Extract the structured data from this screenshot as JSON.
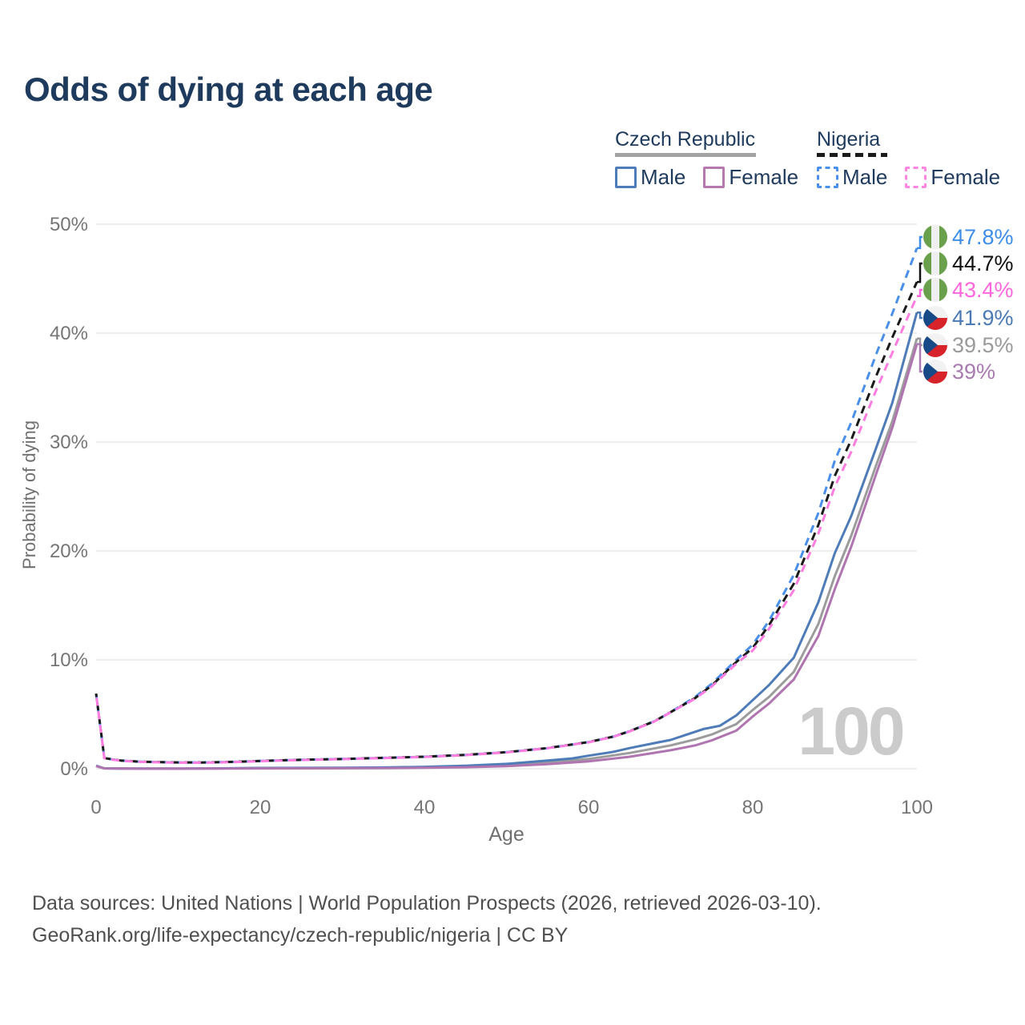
{
  "header": {
    "title": "Odds of dying at each age"
  },
  "legend": {
    "groups": [
      {
        "country": "Czech Republic",
        "line_style": "solid",
        "line_color": "#a3a3a3",
        "underline_width": 176,
        "items": [
          {
            "label": "Male",
            "color": "#4e7cb8",
            "style": "solid"
          },
          {
            "label": "Female",
            "color": "#b679ae",
            "style": "solid"
          }
        ]
      },
      {
        "country": "Nigeria",
        "line_style": "dashed",
        "line_color": "#1a1a1a",
        "underline_width": 88,
        "items": [
          {
            "label": "Male",
            "color": "#4a90ea",
            "style": "dashed"
          },
          {
            "label": "Female",
            "color": "#ff85e3",
            "style": "dashed"
          }
        ]
      }
    ]
  },
  "chart_data": {
    "type": "line",
    "title": "Odds of dying at each age",
    "xlabel": "Age",
    "ylabel": "Probability of dying",
    "xlim": [
      0,
      100
    ],
    "ylim": [
      0,
      50
    ],
    "xticks": [
      "0",
      "20",
      "40",
      "60",
      "80",
      "100"
    ],
    "yticks": [
      "0%",
      "10%",
      "20%",
      "30%",
      "40%",
      "50%"
    ],
    "ytick_values": [
      0,
      10,
      20,
      30,
      40,
      50
    ],
    "grid": "horizontal-only",
    "legend_position": "top-right",
    "watermark": "100",
    "series": [
      {
        "name": "Czech Republic",
        "sex": "total",
        "color": "#9c9c9c",
        "dash": false,
        "points": [
          [
            0,
            0.26
          ],
          [
            1,
            0.035
          ],
          [
            3,
            0.015
          ],
          [
            5,
            0.012
          ],
          [
            10,
            0.01
          ],
          [
            15,
            0.03
          ],
          [
            20,
            0.05
          ],
          [
            25,
            0.055
          ],
          [
            30,
            0.065
          ],
          [
            35,
            0.09
          ],
          [
            40,
            0.13
          ],
          [
            45,
            0.2
          ],
          [
            50,
            0.33
          ],
          [
            55,
            0.55
          ],
          [
            60,
            0.9
          ],
          [
            65,
            1.45
          ],
          [
            70,
            2.15
          ],
          [
            73,
            2.7
          ],
          [
            75,
            3.15
          ],
          [
            78,
            4.1
          ],
          [
            80,
            5.4
          ],
          [
            82,
            6.6
          ],
          [
            85,
            8.9
          ],
          [
            88,
            13.3
          ],
          [
            90,
            17.7
          ],
          [
            92,
            21.4
          ],
          [
            95,
            27.8
          ],
          [
            97,
            31.9
          ],
          [
            100,
            39.5
          ]
        ]
      },
      {
        "name": "Czech Republic Male",
        "sex": "male",
        "color": "#4e7cb8",
        "dash": false,
        "points": [
          [
            0,
            0.28
          ],
          [
            1,
            0.04
          ],
          [
            3,
            0.02
          ],
          [
            5,
            0.015
          ],
          [
            10,
            0.012
          ],
          [
            15,
            0.04
          ],
          [
            20,
            0.07
          ],
          [
            25,
            0.08
          ],
          [
            30,
            0.09
          ],
          [
            35,
            0.12
          ],
          [
            40,
            0.18
          ],
          [
            45,
            0.28
          ],
          [
            50,
            0.45
          ],
          [
            55,
            0.75
          ],
          [
            58,
            0.95
          ],
          [
            60,
            1.2
          ],
          [
            63,
            1.55
          ],
          [
            65,
            1.9
          ],
          [
            68,
            2.35
          ],
          [
            70,
            2.65
          ],
          [
            72,
            3.15
          ],
          [
            74,
            3.65
          ],
          [
            76,
            3.95
          ],
          [
            78,
            4.9
          ],
          [
            80,
            6.3
          ],
          [
            82,
            7.7
          ],
          [
            85,
            10.2
          ],
          [
            88,
            15.3
          ],
          [
            90,
            19.8
          ],
          [
            92,
            23.2
          ],
          [
            95,
            29.4
          ],
          [
            97,
            33.6
          ],
          [
            100,
            41.9
          ]
        ]
      },
      {
        "name": "Czech Republic Female",
        "sex": "female",
        "color": "#b075b0",
        "dash": false,
        "points": [
          [
            0,
            0.24
          ],
          [
            1,
            0.03
          ],
          [
            3,
            0.012
          ],
          [
            5,
            0.01
          ],
          [
            10,
            0.009
          ],
          [
            15,
            0.02
          ],
          [
            20,
            0.03
          ],
          [
            25,
            0.035
          ],
          [
            30,
            0.045
          ],
          [
            35,
            0.06
          ],
          [
            40,
            0.09
          ],
          [
            45,
            0.14
          ],
          [
            50,
            0.24
          ],
          [
            55,
            0.42
          ],
          [
            60,
            0.68
          ],
          [
            65,
            1.1
          ],
          [
            70,
            1.7
          ],
          [
            73,
            2.15
          ],
          [
            75,
            2.6
          ],
          [
            78,
            3.5
          ],
          [
            80,
            4.8
          ],
          [
            82,
            6.0
          ],
          [
            85,
            8.2
          ],
          [
            88,
            12.2
          ],
          [
            90,
            16.5
          ],
          [
            92,
            20.4
          ],
          [
            95,
            27.0
          ],
          [
            97,
            31.3
          ],
          [
            100,
            39.0
          ]
        ]
      },
      {
        "name": "Nigeria Male",
        "sex": "male",
        "color": "#4a90ea",
        "dash": true,
        "dashoffset": 0,
        "points": [
          [
            0,
            6.9
          ],
          [
            1,
            0.98
          ],
          [
            2,
            0.86
          ],
          [
            3,
            0.76
          ],
          [
            5,
            0.66
          ],
          [
            8,
            0.6
          ],
          [
            10,
            0.58
          ],
          [
            13,
            0.57
          ],
          [
            15,
            0.6
          ],
          [
            18,
            0.66
          ],
          [
            20,
            0.72
          ],
          [
            25,
            0.82
          ],
          [
            30,
            0.9
          ],
          [
            35,
            1.0
          ],
          [
            40,
            1.1
          ],
          [
            45,
            1.27
          ],
          [
            50,
            1.52
          ],
          [
            55,
            1.9
          ],
          [
            60,
            2.45
          ],
          [
            63,
            2.95
          ],
          [
            65,
            3.45
          ],
          [
            68,
            4.35
          ],
          [
            70,
            5.2
          ],
          [
            73,
            6.6
          ],
          [
            75,
            7.8
          ],
          [
            78,
            10.0
          ],
          [
            80,
            11.4
          ],
          [
            82,
            13.6
          ],
          [
            85,
            17.8
          ],
          [
            88,
            23.5
          ],
          [
            90,
            28.3
          ],
          [
            92,
            31.8
          ],
          [
            95,
            38.0
          ],
          [
            97,
            41.8
          ],
          [
            100,
            47.8
          ]
        ]
      },
      {
        "name": "Nigeria",
        "sex": "total",
        "color": "#1a1a1a",
        "dash": true,
        "dashoffset": 6,
        "points": [
          [
            0,
            6.9
          ],
          [
            1,
            0.98
          ],
          [
            2,
            0.86
          ],
          [
            3,
            0.76
          ],
          [
            5,
            0.66
          ],
          [
            8,
            0.6
          ],
          [
            10,
            0.58
          ],
          [
            13,
            0.57
          ],
          [
            15,
            0.6
          ],
          [
            18,
            0.66
          ],
          [
            20,
            0.72
          ],
          [
            25,
            0.82
          ],
          [
            30,
            0.9
          ],
          [
            35,
            1.0
          ],
          [
            40,
            1.1
          ],
          [
            45,
            1.27
          ],
          [
            50,
            1.52
          ],
          [
            55,
            1.9
          ],
          [
            60,
            2.45
          ],
          [
            63,
            2.95
          ],
          [
            65,
            3.45
          ],
          [
            68,
            4.35
          ],
          [
            70,
            5.2
          ],
          [
            73,
            6.5
          ],
          [
            75,
            7.65
          ],
          [
            78,
            9.8
          ],
          [
            80,
            11.1
          ],
          [
            82,
            13.2
          ],
          [
            85,
            17.0
          ],
          [
            88,
            22.4
          ],
          [
            90,
            26.9
          ],
          [
            92,
            30.2
          ],
          [
            95,
            36.0
          ],
          [
            97,
            39.6
          ],
          [
            100,
            44.7
          ]
        ]
      },
      {
        "name": "Nigeria Female",
        "sex": "female",
        "color": "#ff7ce0",
        "dash": true,
        "dashoffset": 12,
        "points": [
          [
            0,
            6.88
          ],
          [
            1,
            0.96
          ],
          [
            2,
            0.84
          ],
          [
            3,
            0.74
          ],
          [
            5,
            0.64
          ],
          [
            8,
            0.58
          ],
          [
            10,
            0.56
          ],
          [
            13,
            0.55
          ],
          [
            15,
            0.58
          ],
          [
            18,
            0.64
          ],
          [
            20,
            0.7
          ],
          [
            25,
            0.8
          ],
          [
            30,
            0.88
          ],
          [
            35,
            0.98
          ],
          [
            40,
            1.08
          ],
          [
            45,
            1.25
          ],
          [
            50,
            1.5
          ],
          [
            55,
            1.88
          ],
          [
            60,
            2.43
          ],
          [
            63,
            2.93
          ],
          [
            65,
            3.43
          ],
          [
            68,
            4.33
          ],
          [
            70,
            5.18
          ],
          [
            73,
            6.45
          ],
          [
            75,
            7.55
          ],
          [
            78,
            9.65
          ],
          [
            80,
            10.85
          ],
          [
            82,
            12.85
          ],
          [
            85,
            16.4
          ],
          [
            88,
            21.6
          ],
          [
            90,
            25.9
          ],
          [
            92,
            29.1
          ],
          [
            95,
            34.7
          ],
          [
            97,
            38.2
          ],
          [
            100,
            43.4
          ]
        ]
      }
    ],
    "end_labels": [
      {
        "text": "47.8%",
        "value": 47.8,
        "color": "#3d8de8",
        "flag": "nigeria",
        "series": "Nigeria Male"
      },
      {
        "text": "44.7%",
        "value": 44.7,
        "color": "#111111",
        "flag": "nigeria",
        "series": "Nigeria"
      },
      {
        "text": "43.4%",
        "value": 43.4,
        "color": "#ff66dd",
        "flag": "nigeria",
        "series": "Nigeria Female"
      },
      {
        "text": "41.9%",
        "value": 41.9,
        "color": "#4a7ab5",
        "flag": "czechia",
        "series": "Czech Republic Male"
      },
      {
        "text": "39.5%",
        "value": 39.5,
        "color": "#9a9a9a",
        "flag": "czechia",
        "series": "Czech Republic"
      },
      {
        "text": "39%",
        "value": 39.0,
        "color": "#a87ab0",
        "flag": "czechia",
        "series": "Czech Republic Female"
      }
    ],
    "flag_colors": {
      "nigeria_green": "#6aa04c",
      "nigeria_white": "#efefef",
      "czech_white": "#f2f2f2",
      "czech_red": "#d7232a",
      "czech_blue": "#174a86"
    }
  },
  "footer": {
    "line1": "Data sources: United Nations | World Population Prospects (2026, retrieved 2026-03-10).",
    "line2": "GeoRank.org/life-expectancy/czech-republic/nigeria | CC BY"
  }
}
